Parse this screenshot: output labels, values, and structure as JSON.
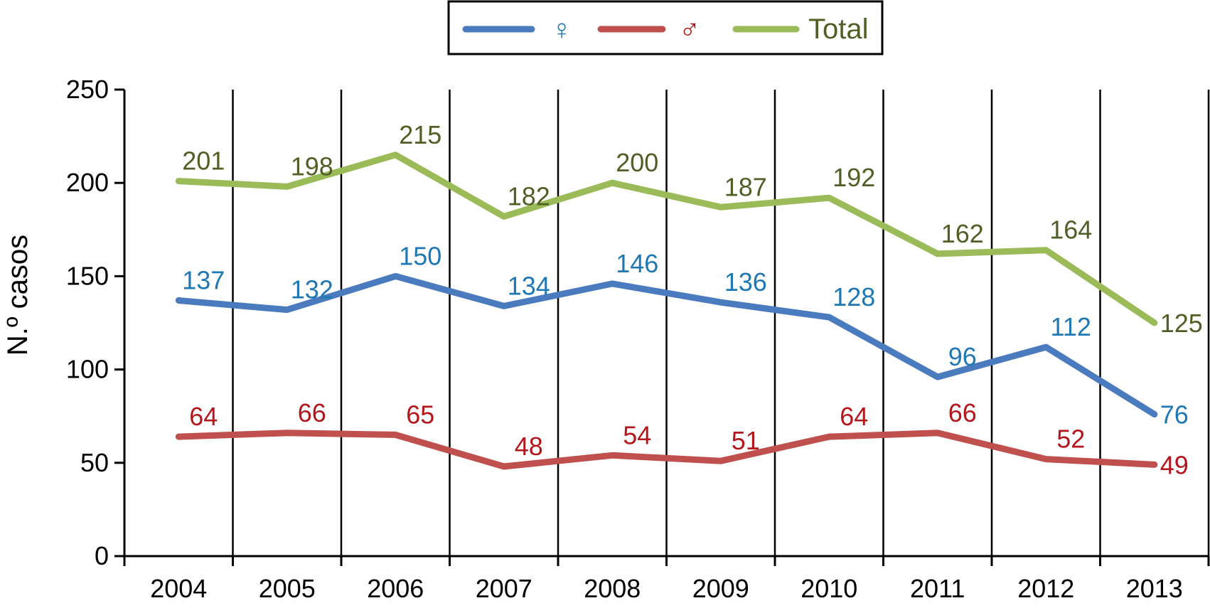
{
  "chart_data": {
    "type": "line",
    "categories": [
      "2004",
      "2005",
      "2006",
      "2007",
      "2008",
      "2009",
      "2010",
      "2011",
      "2012",
      "2013"
    ],
    "series": [
      {
        "name": "♀",
        "color": "#4a7bbf",
        "label_color": "#1f78b4",
        "values": [
          137,
          132,
          150,
          134,
          146,
          136,
          128,
          96,
          112,
          76
        ]
      },
      {
        "name": "♂",
        "color": "#c0504d",
        "label_color": "#b3171c",
        "values": [
          64,
          66,
          65,
          48,
          54,
          51,
          64,
          66,
          52,
          49
        ]
      },
      {
        "name": "Total",
        "color": "#9bbb59",
        "label_color": "#4f5f25",
        "values": [
          201,
          198,
          215,
          182,
          200,
          187,
          192,
          162,
          164,
          125
        ]
      }
    ],
    "ylabel": "N.º casos",
    "xlabel": "",
    "ylim": [
      0,
      250
    ],
    "yticks": [
      "0",
      "50",
      "100",
      "150",
      "200",
      "250"
    ],
    "grid": "vertical",
    "legend_position": "top-center"
  }
}
